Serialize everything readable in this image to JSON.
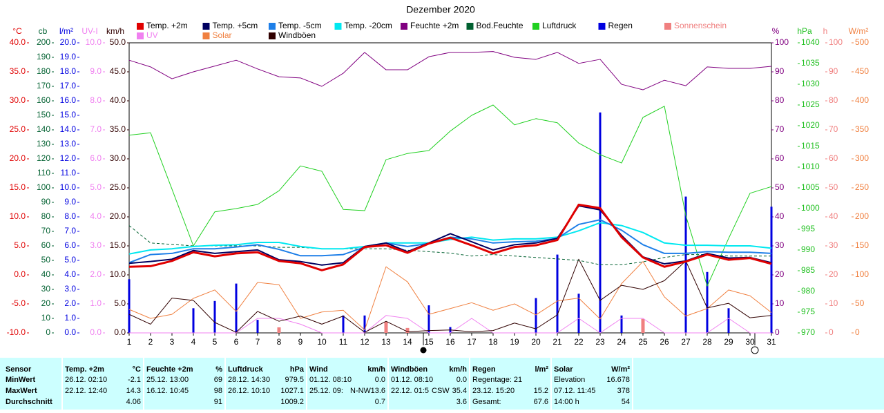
{
  "chart_data": {
    "type": "line",
    "title": "Dezember 2020",
    "x": [
      1,
      2,
      3,
      4,
      5,
      6,
      7,
      8,
      9,
      10,
      11,
      12,
      13,
      14,
      15,
      16,
      17,
      18,
      19,
      20,
      21,
      22,
      23,
      24,
      25,
      26,
      27,
      28,
      29,
      30,
      31
    ],
    "xlim": [
      1,
      31
    ],
    "xticks": [
      1,
      2,
      3,
      4,
      5,
      6,
      7,
      8,
      9,
      10,
      11,
      12,
      13,
      14,
      15,
      16,
      17,
      18,
      19,
      20,
      21,
      22,
      23,
      24,
      25,
      26,
      27,
      28,
      29,
      30,
      31
    ],
    "grid": false,
    "y_axes": {
      "temp": {
        "label": "°C",
        "color": "#e00000",
        "lim": [
          -10,
          40
        ],
        "ticks": [
          {
            "value": -10,
            "label": "-10.0"
          },
          {
            "value": -5,
            "label": "-5.0"
          },
          {
            "value": 0,
            "label": "0.0"
          },
          {
            "value": 5,
            "label": "5.0"
          },
          {
            "value": 10,
            "label": "10.0"
          },
          {
            "value": 15,
            "label": "15.0"
          },
          {
            "value": 20,
            "label": "20.0"
          },
          {
            "value": 25,
            "label": "25.0"
          },
          {
            "value": 30,
            "label": "30.0"
          },
          {
            "value": 35,
            "label": "35.0"
          },
          {
            "value": 40,
            "label": "40.0"
          }
        ]
      },
      "cb": {
        "label": "cb",
        "color": "#006030",
        "lim": [
          0,
          200
        ],
        "ticks": [
          0,
          10,
          20,
          30,
          40,
          50,
          60,
          70,
          80,
          90,
          100,
          110,
          120,
          130,
          140,
          150,
          160,
          170,
          180,
          190,
          200
        ]
      },
      "rain": {
        "label": "l/m²",
        "color": "#0000e0",
        "lim": [
          0,
          20
        ],
        "ticks": [
          {
            "value": 0,
            "label": "0.0"
          },
          {
            "value": 1,
            "label": "1.0"
          },
          {
            "value": 2,
            "label": "2.0"
          },
          {
            "value": 3,
            "label": "3.0"
          },
          {
            "value": 4,
            "label": "4.0"
          },
          {
            "value": 5,
            "label": "5.0"
          },
          {
            "value": 6,
            "label": "6.0"
          },
          {
            "value": 7,
            "label": "7.0"
          },
          {
            "value": 8,
            "label": "8.0"
          },
          {
            "value": 9,
            "label": "9.0"
          },
          {
            "value": 10,
            "label": "10.0"
          },
          {
            "value": 11,
            "label": "11.0"
          },
          {
            "value": 12,
            "label": "12.0"
          },
          {
            "value": 13,
            "label": "13.0"
          },
          {
            "value": 14,
            "label": "14.0"
          },
          {
            "value": 15,
            "label": "15.0"
          },
          {
            "value": 16,
            "label": "16.0"
          },
          {
            "value": 17,
            "label": "17.0"
          },
          {
            "value": 18,
            "label": "18.0"
          },
          {
            "value": 19,
            "label": "19.0"
          },
          {
            "value": 20,
            "label": "20.0"
          }
        ]
      },
      "uv": {
        "label": "UV-I",
        "color": "#f080f0",
        "lim": [
          0,
          10
        ],
        "ticks": [
          {
            "value": 0,
            "label": "0.0"
          },
          {
            "value": 1,
            "label": "1.0"
          },
          {
            "value": 2,
            "label": "2.0"
          },
          {
            "value": 3,
            "label": "3.0"
          },
          {
            "value": 4,
            "label": "4.0"
          },
          {
            "value": 5,
            "label": "5.0"
          },
          {
            "value": 6,
            "label": "6.0"
          },
          {
            "value": 7,
            "label": "7.0"
          },
          {
            "value": 8,
            "label": "8.0"
          },
          {
            "value": 9,
            "label": "9.0"
          },
          {
            "value": 10,
            "label": "10.0"
          }
        ]
      },
      "kmh": {
        "label": "km/h",
        "color": "#300000",
        "lim": [
          0,
          50
        ],
        "ticks": [
          {
            "value": 0,
            "label": "0.0"
          },
          {
            "value": 5,
            "label": "5.0"
          },
          {
            "value": 10,
            "label": "10.0"
          },
          {
            "value": 15,
            "label": "15.0"
          },
          {
            "value": 20,
            "label": "20.0"
          },
          {
            "value": 25,
            "label": "25.0"
          },
          {
            "value": 30,
            "label": "30.0"
          },
          {
            "value": 35,
            "label": "35.0"
          },
          {
            "value": 40,
            "label": "40.0"
          },
          {
            "value": 45,
            "label": "45.0"
          },
          {
            "value": 50,
            "label": "50.0"
          }
        ]
      },
      "pct": {
        "label": "%",
        "color": "#800080",
        "lim": [
          0,
          100
        ],
        "ticks": [
          0,
          10,
          20,
          30,
          40,
          50,
          60,
          70,
          80,
          90,
          100
        ]
      },
      "hpa": {
        "label": "hPa",
        "color": "#20c020",
        "lim": [
          970,
          1040
        ],
        "ticks": [
          970,
          975,
          980,
          985,
          990,
          995,
          1000,
          1005,
          1010,
          1015,
          1020,
          1025,
          1030,
          1035,
          1040
        ]
      },
      "h": {
        "label": "h",
        "color": "#f08080",
        "lim": [
          0,
          100
        ],
        "ticks": [
          0,
          10,
          20,
          30,
          40,
          50,
          60,
          70,
          80,
          90,
          100
        ]
      },
      "w": {
        "label": "W/m²",
        "color": "#f08040",
        "lim": [
          0,
          500
        ],
        "ticks": [
          0,
          50,
          100,
          150,
          200,
          250,
          300,
          350,
          400,
          450,
          500
        ]
      }
    },
    "series": [
      {
        "name": "Temp. +2m",
        "color": "#e00000",
        "axis": "temp",
        "kind": "line",
        "values": [
          1.4,
          1.5,
          2.4,
          3.9,
          3.2,
          3.7,
          3.9,
          2.4,
          2.0,
          0.8,
          1.8,
          4.8,
          5.1,
          3.8,
          5.4,
          6.4,
          5.1,
          3.7,
          4.8,
          5.1,
          6.0,
          12.1,
          11.5,
          6.5,
          3.0,
          1.4,
          2.3,
          3.5,
          2.6,
          2.9,
          1.9
        ]
      },
      {
        "name": "Temp. +5cm",
        "color": "#000060",
        "axis": "temp",
        "kind": "line",
        "values": [
          2.0,
          2.3,
          2.7,
          4.2,
          3.7,
          4.0,
          4.3,
          2.6,
          2.3,
          1.7,
          2.1,
          4.9,
          5.5,
          4.0,
          5.5,
          7.1,
          5.7,
          4.3,
          5.2,
          5.5,
          6.3,
          11.9,
          11.2,
          6.8,
          3.1,
          1.9,
          2.4,
          3.7,
          2.9,
          3.0,
          2.1
        ]
      },
      {
        "name": "Temp. -5cm",
        "color": "#1e7fe8",
        "axis": "temp",
        "kind": "line",
        "values": [
          2.1,
          3.5,
          3.7,
          4.5,
          4.5,
          4.8,
          5.2,
          4.4,
          3.3,
          3.3,
          3.5,
          4.8,
          5.5,
          4.9,
          5.4,
          6.5,
          6.2,
          5.5,
          5.7,
          5.8,
          6.3,
          8.7,
          9.5,
          7.7,
          5.2,
          3.7,
          3.7,
          4.0,
          3.9,
          3.9,
          3.7
        ]
      },
      {
        "name": "Temp. -20cm",
        "color": "#00e8f0",
        "axis": "temp",
        "kind": "line",
        "values": [
          3.6,
          4.3,
          4.5,
          4.9,
          5.1,
          5.2,
          5.6,
          5.6,
          4.9,
          4.5,
          4.5,
          4.9,
          5.5,
          5.5,
          5.5,
          6.1,
          6.5,
          6.0,
          6.2,
          6.2,
          6.5,
          7.6,
          9.0,
          8.5,
          7.3,
          5.5,
          5.1,
          5.1,
          5.0,
          5.0,
          4.6
        ]
      },
      {
        "name": "Feuchte +2m",
        "color": "#800080",
        "axis": "pct",
        "kind": "line",
        "values": [
          94,
          91.7,
          87.6,
          90,
          92,
          94,
          91,
          88.3,
          87.9,
          85,
          89.5,
          96.7,
          90.7,
          90.7,
          95.2,
          96.7,
          96.7,
          97,
          95,
          94.3,
          96.7,
          92.9,
          94.3,
          85.7,
          83.8,
          87.1,
          85.2,
          91.7,
          91.2,
          91.2,
          91.9
        ]
      },
      {
        "name": "Bod.Feuchte",
        "color": "#006030",
        "axis": "pct",
        "kind": "dashed",
        "values": [
          37,
          31,
          30.5,
          30,
          30,
          30,
          30,
          29.5,
          29.5,
          29,
          29,
          29,
          29,
          28.5,
          28,
          27.5,
          26.5,
          27,
          26.5,
          26,
          25.5,
          25,
          23.5,
          23.5,
          24.5,
          26,
          27,
          27,
          26.5,
          26.5,
          26.5
        ]
      },
      {
        "name": "Luftdruck",
        "color": "#20d020",
        "axis": "hpa",
        "kind": "line",
        "values": [
          1017.7,
          1018.3,
          1004.7,
          991,
          999.2,
          1000,
          1001,
          1004.3,
          1010.3,
          1009,
          999.8,
          999.5,
          1011.8,
          1013.3,
          1014,
          1018.7,
          1022.5,
          1025,
          1020.2,
          1021.7,
          1020.7,
          1015.8,
          1013,
          1011,
          1022,
          1024.7,
          998.3,
          981.3,
          992.8,
          1003.7,
          1005.3
        ]
      },
      {
        "name": "Regen",
        "color": "#0000e0",
        "axis": "rain",
        "kind": "bar",
        "values": [
          3.7,
          0,
          0,
          1.7,
          2.2,
          3.4,
          0.9,
          0,
          0,
          0,
          1.2,
          1.2,
          0,
          0,
          1.9,
          0.4,
          0,
          0,
          0,
          2.4,
          5.4,
          2.7,
          15.2,
          1.2,
          0,
          0,
          9.4,
          4.2,
          1.7,
          0,
          8.7
        ]
      },
      {
        "name": "Sonnenschein",
        "color": "#f08080",
        "axis": "h",
        "kind": "bar",
        "values": [
          0,
          0,
          0,
          0,
          0,
          0,
          0,
          1.9,
          0,
          0,
          0,
          0,
          3.8,
          1.7,
          0,
          0,
          0,
          0,
          0,
          0,
          0,
          0,
          0,
          0,
          4.8,
          0,
          0,
          0,
          0,
          0,
          0
        ]
      },
      {
        "name": "UV",
        "color": "#f080f0",
        "axis": "uv",
        "kind": "line",
        "values": [
          0,
          0,
          0,
          0,
          0,
          0,
          0.5,
          0.5,
          0.3,
          0,
          0,
          0,
          0.6,
          0.5,
          0,
          0,
          0.5,
          0,
          0,
          0,
          0,
          0.5,
          0,
          0.5,
          0.5,
          0,
          0,
          0,
          0.5,
          0,
          0
        ]
      },
      {
        "name": "Solar",
        "color": "#f08040",
        "axis": "w",
        "kind": "line",
        "values": [
          40.5,
          25,
          32,
          59.5,
          74,
          37,
          87,
          83,
          25,
          36,
          39,
          5,
          114,
          88,
          32,
          42,
          52,
          39,
          50,
          31,
          55,
          60,
          24,
          85,
          123,
          62,
          29,
          42,
          74,
          64,
          35
        ]
      },
      {
        "name": "Windböen",
        "color": "#300000",
        "axis": "kmh",
        "kind": "line",
        "values": [
          3.2,
          1.5,
          6.0,
          5.6,
          1.8,
          0.1,
          3.7,
          2.0,
          2.9,
          1.5,
          2.9,
          0.1,
          2.0,
          0.2,
          0.4,
          0.5,
          0.2,
          0.4,
          1.7,
          0.7,
          3.1,
          12.7,
          5.6,
          8.2,
          7.5,
          9.0,
          12.4,
          4.3,
          5.1,
          2.6,
          3.0
        ]
      }
    ]
  },
  "table": {
    "sensor": {
      "header": "Sensor",
      "rows": [
        "MinWert",
        "MaxWert",
        "Durchschnitt"
      ]
    },
    "groups": [
      {
        "name": "Temp. +2m",
        "unit": "°C",
        "rows": [
          {
            "label": "26.12. 02:10",
            "value": "-2.1"
          },
          {
            "label": "22.12. 12:40",
            "value": "14.3"
          },
          {
            "value": "4.06"
          }
        ]
      },
      {
        "name": "Feuchte +2m",
        "unit": "%",
        "rows": [
          {
            "label": "25.12. 13:00",
            "value": "69"
          },
          {
            "label": "16.12. 10:45",
            "value": "98"
          },
          {
            "value": "91"
          }
        ]
      },
      {
        "name": "Luftdruck",
        "unit": "hPa",
        "rows": [
          {
            "label": "28.12. 14:30",
            "value": "979.5"
          },
          {
            "label": "26.12. 10:10",
            "value": "1027.1"
          },
          {
            "value": "1009.2"
          }
        ]
      },
      {
        "name": "Wind",
        "unit": "km/h",
        "rows": [
          {
            "label": "01.12. 08:10",
            "value": "0.0"
          },
          {
            "label": "25.12. 09:",
            "extra": "N-NW",
            "value": "13.6"
          },
          {
            "value": "0.7"
          }
        ]
      },
      {
        "name": "Windböen",
        "unit": "km/h",
        "rows": [
          {
            "label": "01.12. 08:10",
            "value": "0.0"
          },
          {
            "label": "22.12. 01:5",
            "extra": "CSW",
            "value": "35.4"
          },
          {
            "value": "3.6"
          }
        ]
      },
      {
        "name": "Regen",
        "unit": "l/m²",
        "rows": [
          {
            "label": "Regentage: 21"
          },
          {
            "label": "23.12. 15:20",
            "value": "15.2"
          },
          {
            "label": "Gesamt:",
            "value": "67.6"
          }
        ]
      },
      {
        "name": "Solar",
        "unit": "W/m²",
        "rows": [
          {
            "label": "Elevation",
            "value": "16.678"
          },
          {
            "label": "07.12. 11:45",
            "value": "378"
          },
          {
            "label": "14:00 h",
            "value": "54"
          }
        ]
      }
    ]
  }
}
